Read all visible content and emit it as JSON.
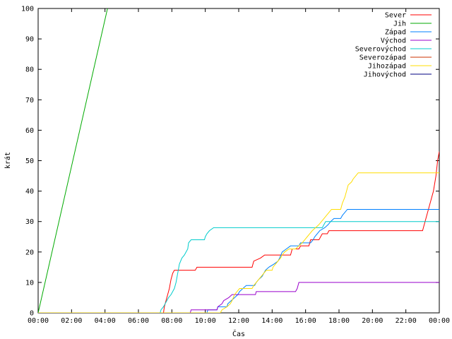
{
  "chart_data": {
    "type": "line",
    "title": "",
    "xlabel": "Čas",
    "ylabel": "krát",
    "xlim": [
      0,
      24
    ],
    "ylim": [
      0,
      100
    ],
    "x_ticks": [
      0,
      2,
      4,
      6,
      8,
      10,
      12,
      14,
      16,
      18,
      20,
      22,
      24
    ],
    "x_tick_labels": [
      "00:00",
      "02:00",
      "04:00",
      "06:00",
      "08:00",
      "10:00",
      "12:00",
      "14:00",
      "16:00",
      "18:00",
      "20:00",
      "22:00",
      "00:00"
    ],
    "y_ticks": [
      0,
      10,
      20,
      30,
      40,
      50,
      60,
      70,
      80,
      90,
      100
    ],
    "grid": false,
    "legend_position": "top-right",
    "series": [
      {
        "name": "Sever",
        "color": "#ff0000",
        "points": [
          [
            0,
            0
          ],
          [
            7.5,
            0
          ],
          [
            7.55,
            2
          ],
          [
            7.65,
            4
          ],
          [
            7.75,
            6
          ],
          [
            7.85,
            8
          ],
          [
            7.95,
            11
          ],
          [
            8.05,
            13
          ],
          [
            8.15,
            14
          ],
          [
            9.4,
            14
          ],
          [
            9.5,
            15
          ],
          [
            12.8,
            15
          ],
          [
            12.9,
            17
          ],
          [
            13.3,
            18
          ],
          [
            13.55,
            19
          ],
          [
            15.1,
            19
          ],
          [
            15.2,
            21
          ],
          [
            15.6,
            21
          ],
          [
            15.7,
            22
          ],
          [
            16.2,
            22
          ],
          [
            16.3,
            24
          ],
          [
            16.8,
            24
          ],
          [
            16.9,
            25
          ],
          [
            17.0,
            26
          ],
          [
            17.3,
            26
          ],
          [
            17.4,
            27
          ],
          [
            23.0,
            27
          ],
          [
            23.3,
            33
          ],
          [
            23.5,
            37
          ],
          [
            23.65,
            40
          ],
          [
            23.8,
            45
          ],
          [
            23.9,
            50
          ],
          [
            24.0,
            53
          ]
        ]
      },
      {
        "name": "Jih",
        "color": "#00aa00",
        "points": [
          [
            0,
            0
          ],
          [
            4.15,
            100
          ]
        ]
      },
      {
        "name": "Západ",
        "color": "#0080ff",
        "points": [
          [
            0,
            0
          ],
          [
            10.1,
            0
          ],
          [
            10.15,
            1
          ],
          [
            10.7,
            1
          ],
          [
            10.75,
            2
          ],
          [
            11.3,
            2
          ],
          [
            11.35,
            3
          ],
          [
            11.55,
            4
          ],
          [
            11.75,
            5
          ],
          [
            11.95,
            6
          ],
          [
            12.05,
            7
          ],
          [
            12.25,
            8
          ],
          [
            12.45,
            9
          ],
          [
            12.95,
            9
          ],
          [
            13.05,
            10
          ],
          [
            13.2,
            11
          ],
          [
            13.4,
            12
          ],
          [
            13.6,
            14
          ],
          [
            13.8,
            15
          ],
          [
            14.1,
            16
          ],
          [
            14.35,
            17
          ],
          [
            14.45,
            18
          ],
          [
            14.6,
            20
          ],
          [
            14.85,
            21
          ],
          [
            15.1,
            22
          ],
          [
            15.6,
            22
          ],
          [
            15.7,
            23
          ],
          [
            16.3,
            23
          ],
          [
            16.45,
            24
          ],
          [
            16.55,
            25
          ],
          [
            16.7,
            26
          ],
          [
            16.85,
            27
          ],
          [
            17.15,
            28
          ],
          [
            17.35,
            29
          ],
          [
            17.5,
            30
          ],
          [
            17.7,
            31
          ],
          [
            18.1,
            31
          ],
          [
            18.2,
            32
          ],
          [
            18.35,
            33
          ],
          [
            18.5,
            34
          ],
          [
            24.0,
            34
          ]
        ]
      },
      {
        "name": "Východ",
        "color": "#9900cc",
        "points": [
          [
            0,
            0
          ],
          [
            9.1,
            0
          ],
          [
            9.15,
            1
          ],
          [
            10.7,
            1
          ],
          [
            10.75,
            2
          ],
          [
            11.0,
            3
          ],
          [
            11.1,
            4
          ],
          [
            11.4,
            5
          ],
          [
            11.6,
            6
          ],
          [
            13.0,
            6
          ],
          [
            13.05,
            7
          ],
          [
            15.4,
            7
          ],
          [
            15.5,
            8
          ],
          [
            15.6,
            10
          ],
          [
            24.0,
            10
          ]
        ]
      },
      {
        "name": "Severovýchod",
        "color": "#00cccc",
        "points": [
          [
            0,
            0
          ],
          [
            7.3,
            0
          ],
          [
            7.35,
            1
          ],
          [
            7.5,
            2
          ],
          [
            7.6,
            3
          ],
          [
            7.7,
            4
          ],
          [
            7.8,
            5
          ],
          [
            7.95,
            6
          ],
          [
            8.15,
            8
          ],
          [
            8.25,
            10
          ],
          [
            8.35,
            13
          ],
          [
            8.45,
            16
          ],
          [
            8.6,
            18
          ],
          [
            8.75,
            19
          ],
          [
            8.85,
            20
          ],
          [
            8.95,
            21
          ],
          [
            9.0,
            23
          ],
          [
            9.15,
            24
          ],
          [
            9.95,
            24
          ],
          [
            10.0,
            25
          ],
          [
            10.1,
            26
          ],
          [
            10.25,
            27
          ],
          [
            10.5,
            28
          ],
          [
            17.0,
            28
          ],
          [
            17.1,
            29
          ],
          [
            17.2,
            30
          ],
          [
            24.0,
            30
          ]
        ]
      },
      {
        "name": "Severozápad",
        "color": "#cc3300",
        "points": []
      },
      {
        "name": "Jihozápad",
        "color": "#ffdd00",
        "points": [
          [
            0,
            0
          ],
          [
            10.9,
            0
          ],
          [
            11.0,
            1
          ],
          [
            11.3,
            2
          ],
          [
            11.5,
            3
          ],
          [
            11.6,
            4
          ],
          [
            11.75,
            6
          ],
          [
            11.9,
            7
          ],
          [
            12.05,
            8
          ],
          [
            12.8,
            8
          ],
          [
            12.9,
            9
          ],
          [
            13.05,
            10
          ],
          [
            13.2,
            11
          ],
          [
            13.35,
            12
          ],
          [
            13.5,
            13
          ],
          [
            13.65,
            14
          ],
          [
            14.0,
            14
          ],
          [
            14.05,
            15
          ],
          [
            14.2,
            16
          ],
          [
            14.35,
            17
          ],
          [
            14.5,
            18
          ],
          [
            14.6,
            19
          ],
          [
            14.75,
            20
          ],
          [
            15.0,
            21
          ],
          [
            15.4,
            21
          ],
          [
            15.6,
            22
          ],
          [
            15.8,
            23
          ],
          [
            15.95,
            24
          ],
          [
            16.1,
            25
          ],
          [
            16.25,
            26
          ],
          [
            16.4,
            27
          ],
          [
            16.6,
            28
          ],
          [
            16.8,
            29
          ],
          [
            16.95,
            30
          ],
          [
            17.1,
            31
          ],
          [
            17.25,
            32
          ],
          [
            17.4,
            33
          ],
          [
            17.55,
            34
          ],
          [
            18.1,
            34
          ],
          [
            18.2,
            36
          ],
          [
            18.35,
            38
          ],
          [
            18.45,
            40
          ],
          [
            18.55,
            42
          ],
          [
            18.75,
            43
          ],
          [
            18.85,
            44
          ],
          [
            19.0,
            45
          ],
          [
            19.15,
            46
          ],
          [
            24.0,
            46
          ]
        ]
      },
      {
        "name": "Jihovýchod",
        "color": "#000080",
        "points": []
      }
    ]
  }
}
